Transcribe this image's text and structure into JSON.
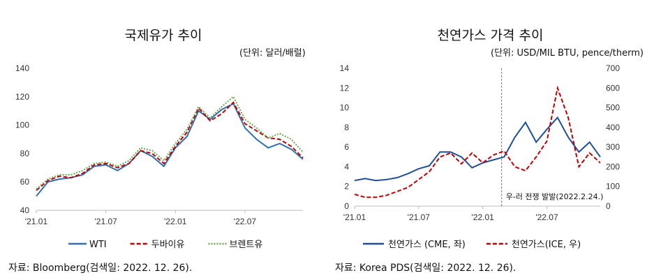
{
  "charts": [
    {
      "title": "국제유가 추이",
      "unit": "(단위: 달러/배럴)",
      "source": "자료: Bloomberg(검색일: 2022. 12. 26).",
      "chart_data": {
        "type": "line",
        "x_ticks": [
          "'21.01",
          "'21.07",
          "'22.01",
          "'22.07"
        ],
        "x": [
          "2021-01",
          "2021-02",
          "2021-03",
          "2021-04",
          "2021-05",
          "2021-06",
          "2021-07",
          "2021-08",
          "2021-09",
          "2021-10",
          "2021-11",
          "2021-12",
          "2022-01",
          "2022-02",
          "2022-03",
          "2022-04",
          "2022-05",
          "2022-06",
          "2022-07",
          "2022-08",
          "2022-09",
          "2022-10",
          "2022-11",
          "2022-12"
        ],
        "ylim": [
          40,
          140
        ],
        "y_ticks": [
          40,
          60,
          80,
          100,
          120,
          140
        ],
        "grid": false,
        "legend_position": "bottom",
        "series": [
          {
            "name": "WTI",
            "color": "#2e6fb5",
            "style": "solid",
            "values": [
              50,
              60,
              62,
              63,
              65,
              71,
              72,
              68,
              73,
              82,
              78,
              71,
              84,
              92,
              110,
              104,
              111,
              115,
              98,
              90,
              84,
              87,
              83,
              76
            ]
          },
          {
            "name": "두바이유",
            "color": "#c00000",
            "style": "dashed",
            "values": [
              54,
              61,
              64,
              63,
              66,
              72,
              73,
              70,
              73,
              82,
              80,
              73,
              85,
              95,
              112,
              103,
              108,
              116,
              101,
              96,
              91,
              90,
              85,
              77
            ]
          },
          {
            "name": "브렌트유",
            "color": "#6aa84f",
            "style": "dotted",
            "values": [
              55,
              62,
              65,
              65,
              68,
              73,
              74,
              71,
              75,
              84,
              82,
              75,
              87,
              97,
              113,
              105,
              113,
              120,
              104,
              98,
              91,
              94,
              90,
              81
            ]
          }
        ]
      }
    },
    {
      "title": "천연가스 가격 추이",
      "unit": "(단위: USD/MIL BTU, pence/therm)",
      "source": "자료: Korea PDS(검색일: 2022. 12. 26).",
      "annotation": "우-러 전쟁 발발(2022.2.24.)",
      "chart_data": {
        "type": "line",
        "x_ticks": [
          "'21.01",
          "'21.07",
          "'22.01",
          "'22.07"
        ],
        "x": [
          "2021-01",
          "2021-02",
          "2021-03",
          "2021-04",
          "2021-05",
          "2021-06",
          "2021-07",
          "2021-08",
          "2021-09",
          "2021-10",
          "2021-11",
          "2021-12",
          "2022-01",
          "2022-02",
          "2022-03",
          "2022-04",
          "2022-05",
          "2022-06",
          "2022-07",
          "2022-08",
          "2022-09",
          "2022-10",
          "2022-11",
          "2022-12"
        ],
        "ylim_left": [
          0,
          14
        ],
        "y_ticks_left": [
          0,
          2,
          4,
          6,
          8,
          10,
          12,
          14
        ],
        "ylim_right": [
          0,
          700
        ],
        "y_ticks_right": [
          0,
          100,
          200,
          300,
          400,
          500,
          600,
          700
        ],
        "event_x": "2022-02-24",
        "legend_position": "bottom",
        "series": [
          {
            "name": "천연가스 (CME, 좌)",
            "axis": "left",
            "color": "#1f4e9a",
            "style": "solid",
            "values": [
              2.6,
              2.8,
              2.6,
              2.7,
              2.9,
              3.3,
              3.8,
              4.1,
              5.5,
              5.5,
              5.0,
              3.9,
              4.4,
              4.7,
              5.0,
              7.0,
              8.5,
              6.5,
              7.8,
              9.0,
              7.0,
              5.5,
              6.5,
              5.0
            ]
          },
          {
            "name": "천연가스(ICE, 우)",
            "axis": "right",
            "color": "#c00000",
            "style": "dashed",
            "values": [
              60,
              45,
              45,
              55,
              75,
              95,
              135,
              175,
              250,
              270,
              215,
              270,
              220,
              260,
              280,
              200,
              180,
              250,
              330,
              600,
              450,
              200,
              270,
              220
            ]
          }
        ]
      }
    }
  ]
}
